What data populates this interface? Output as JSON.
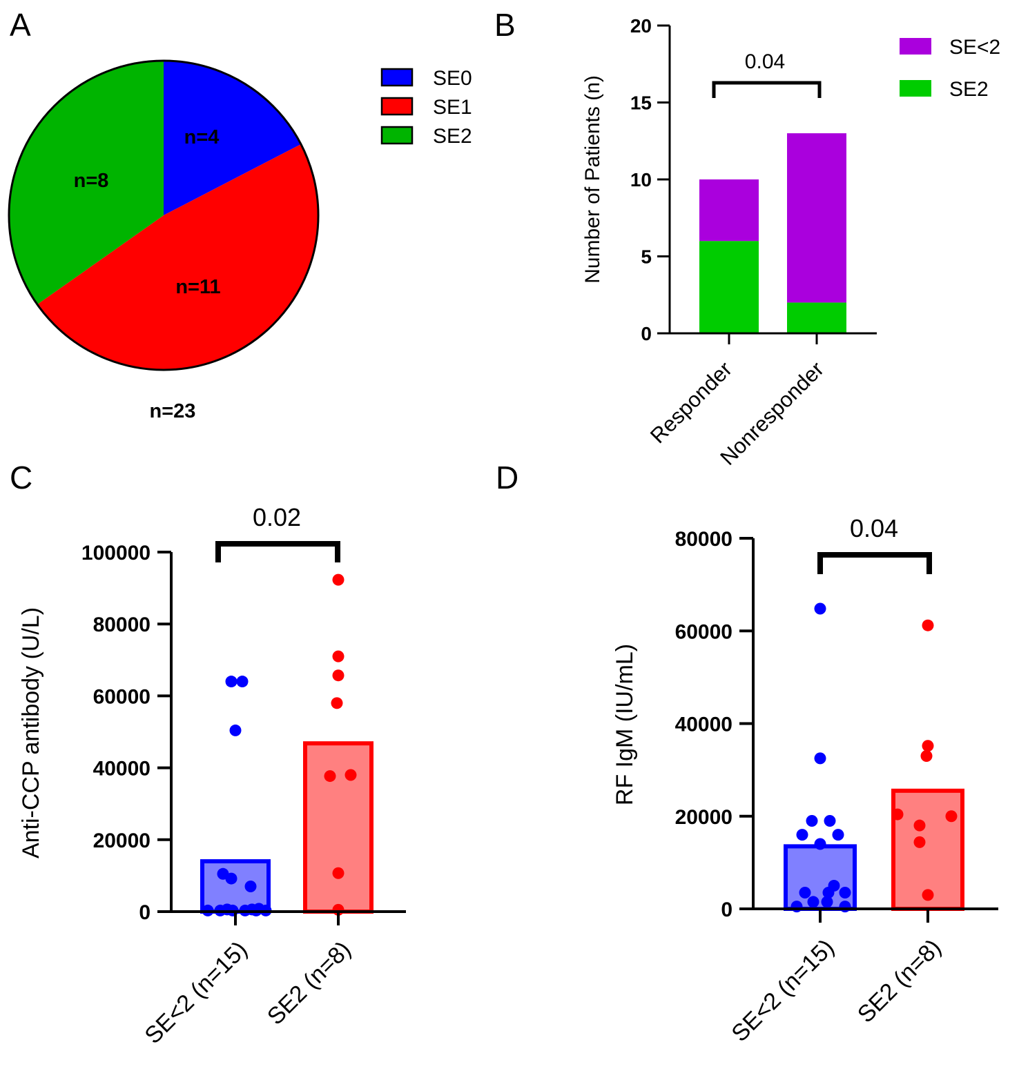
{
  "figure": {
    "panels": [
      "A",
      "B",
      "C",
      "D"
    ]
  },
  "chart_data": [
    {
      "panel": "A",
      "type": "pie",
      "slices": [
        {
          "label": "SE0",
          "value": 4,
          "text": "n=4",
          "color": "#0000ff"
        },
        {
          "label": "SE1",
          "value": 11,
          "text": "n=11",
          "color": "#ff0000"
        },
        {
          "label": "SE2",
          "value": 8,
          "text": "n=8",
          "color": "#00b400"
        }
      ],
      "caption": "n=23",
      "legend": [
        "SE0",
        "SE1",
        "SE2"
      ],
      "legend_position": "right"
    },
    {
      "panel": "B",
      "type": "bar",
      "stacked": true,
      "categories": [
        "Responder",
        "Nonresponder"
      ],
      "series": [
        {
          "name": "SE2",
          "values": [
            6,
            2
          ],
          "color": "#00cc00"
        },
        {
          "name": "SE<2",
          "values": [
            4,
            11
          ],
          "color": "#aa00dd"
        }
      ],
      "ylabel": "Number of Patients (n)",
      "ylim": [
        0,
        20
      ],
      "yticks": [
        "0",
        "5",
        "10",
        "15",
        "20"
      ],
      "yticks_values": [
        0,
        5,
        10,
        15,
        20
      ],
      "legend": [
        "SE<2",
        "SE2"
      ],
      "legend_position": "top-right",
      "annotation": {
        "text": "0.04",
        "between": [
          "Responder",
          "Nonresponder"
        ]
      }
    },
    {
      "panel": "C",
      "type": "bar",
      "categories": [
        "SE<2 (n=15)",
        "SE2 (n=8)"
      ],
      "means": [
        14000,
        46800
      ],
      "bar_fill": [
        "#8080ff",
        "#ff8080"
      ],
      "bar_stroke": [
        "#0000ff",
        "#ff0000"
      ],
      "points": [
        [
          300,
          300,
          300,
          300,
          300,
          300,
          600,
          600,
          7000,
          9200,
          10500,
          50400,
          64000,
          64000,
          800
        ],
        [
          500,
          10700,
          37700,
          38000,
          58000,
          65700,
          71000,
          92300
        ]
      ],
      "ylabel": "Anti-CCP antibody (U/L)",
      "ylim": [
        0,
        100000
      ],
      "yticks": [
        "0",
        "20000",
        "40000",
        "60000",
        "80000",
        "100000"
      ],
      "yticks_values": [
        0,
        20000,
        40000,
        60000,
        80000,
        100000
      ],
      "annotation": {
        "text": "0.02"
      }
    },
    {
      "panel": "D",
      "type": "bar",
      "categories": [
        "SE<2 (n=15)",
        "SE2 (n=8)"
      ],
      "means": [
        13500,
        25500
      ],
      "bar_fill": [
        "#8080ff",
        "#ff8080"
      ],
      "bar_stroke": [
        "#0000ff",
        "#ff0000"
      ],
      "points": [
        [
          64800,
          32500,
          19000,
          19000,
          16000,
          16000,
          14000,
          5000,
          3500,
          3500,
          3500,
          1500,
          1500,
          500,
          500
        ],
        [
          61200,
          35200,
          33000,
          20400,
          20000,
          18000,
          14400,
          3000
        ]
      ],
      "ylabel": "RF IgM (IU/mL)",
      "ylim": [
        0,
        80000
      ],
      "yticks": [
        "0",
        "20000",
        "40000",
        "60000",
        "80000"
      ],
      "yticks_values": [
        0,
        20000,
        40000,
        60000,
        80000
      ],
      "annotation": {
        "text": "0.04"
      }
    }
  ]
}
